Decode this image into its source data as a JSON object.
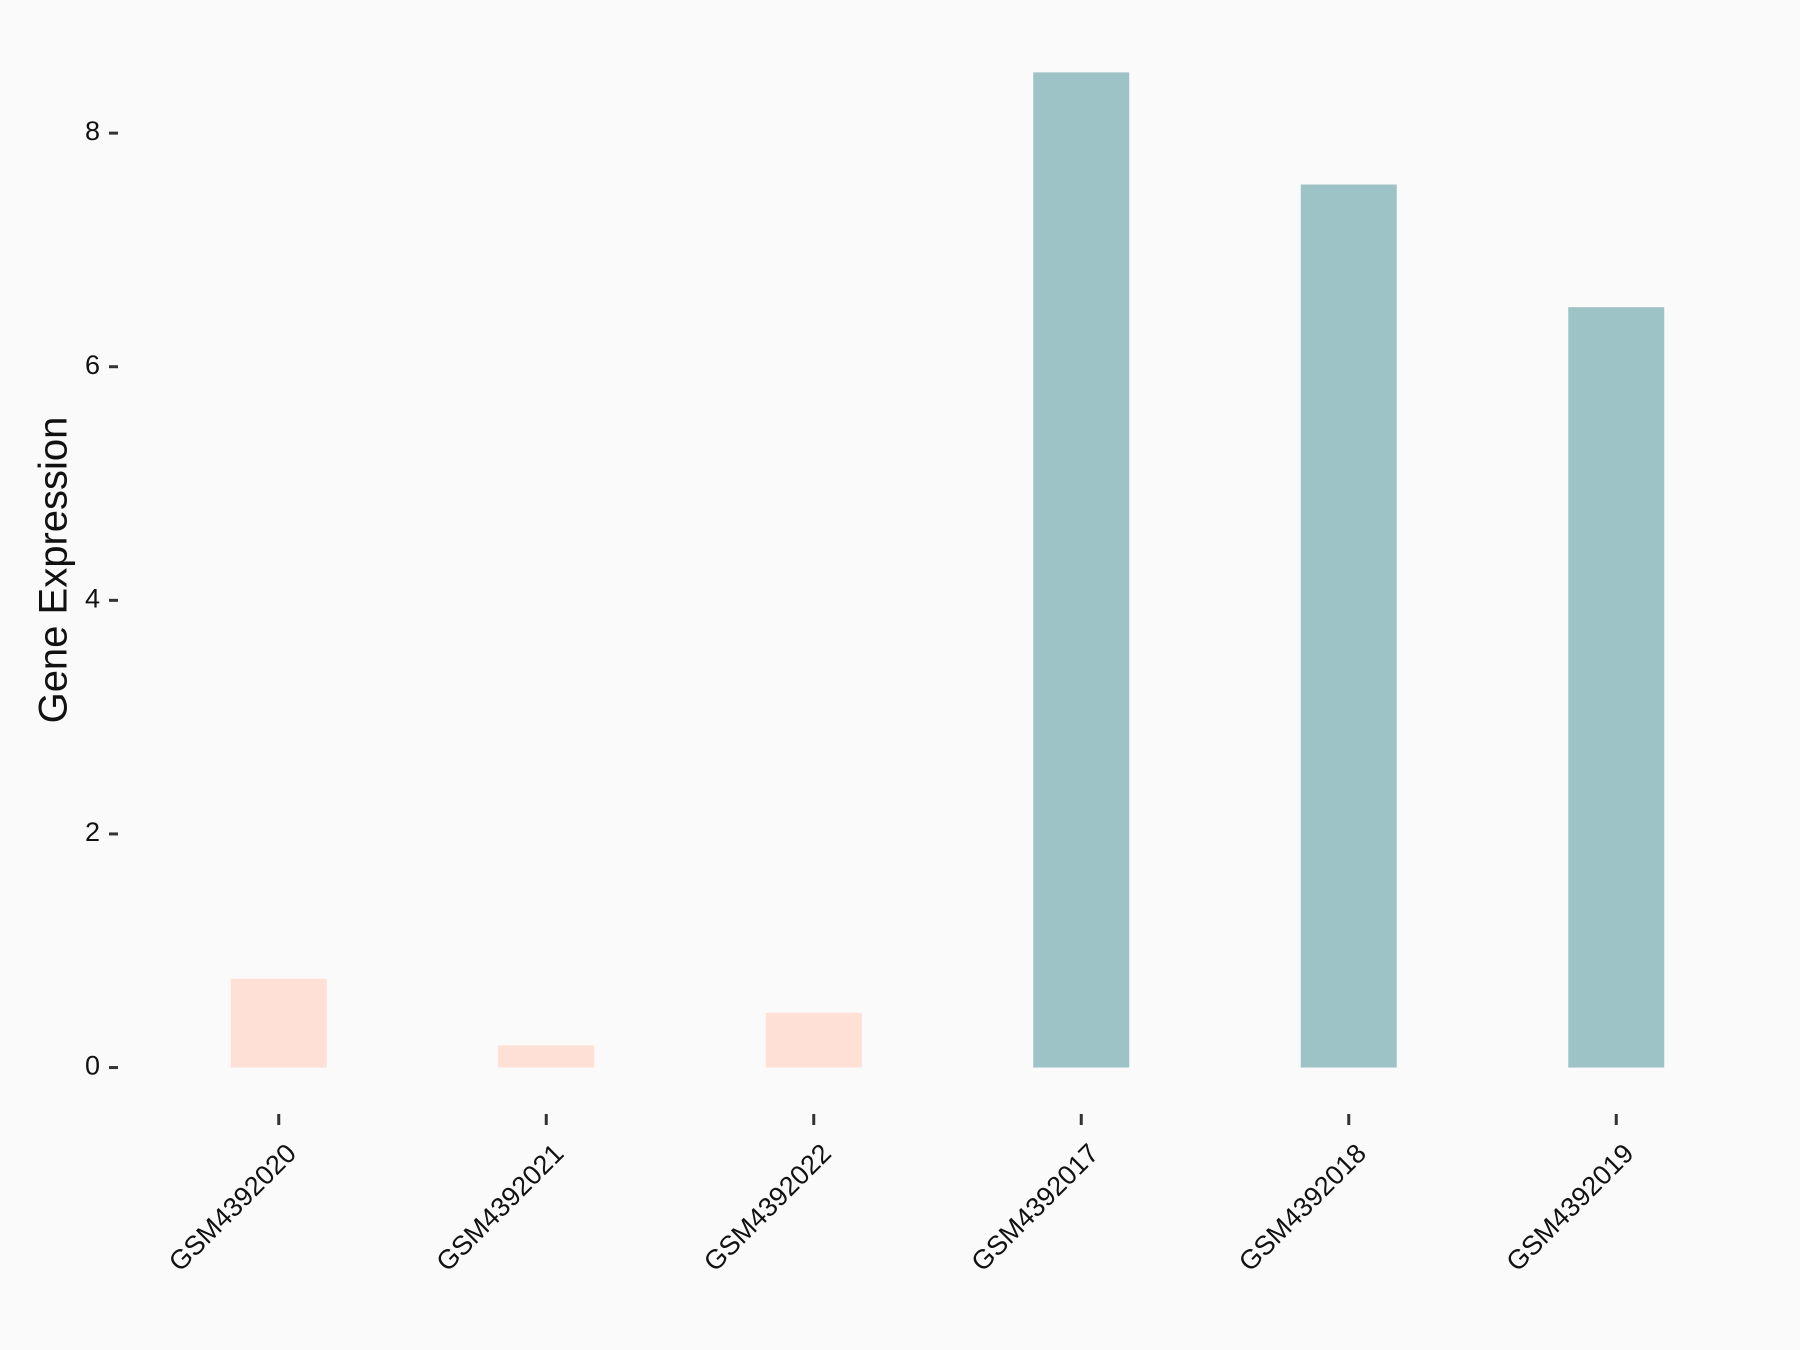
{
  "chart_data": {
    "type": "bar",
    "y_label": "Gene Expression",
    "categories": [
      "GSM4392020",
      "GSM4392021",
      "GSM4392022",
      "GSM4392017",
      "GSM4392018",
      "GSM4392019"
    ],
    "values": [
      0.76,
      0.19,
      0.47,
      8.52,
      7.56,
      6.51
    ],
    "colors": [
      "#FFE0D6",
      "#FFE0D6",
      "#FFE0D6",
      "#9DC3C7",
      "#9DC3C7",
      "#9DC3C7"
    ],
    "ylim": [
      -0.3,
      8.9
    ],
    "yticks": [
      0,
      2,
      4,
      6,
      8
    ]
  }
}
